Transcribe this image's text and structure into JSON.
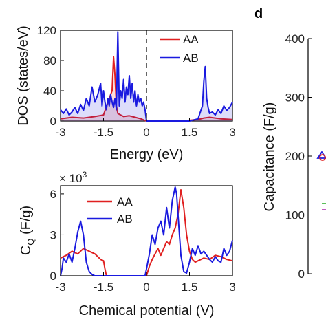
{
  "colors": {
    "AA": "#e02020",
    "AB": "#1a1adf",
    "axis": "#000000"
  },
  "chart_data": [
    {
      "type": "line",
      "panel": "dos",
      "xlabel": "Energy (eV)",
      "ylabel": "DOS (states/eV)",
      "xlim": [
        -3,
        3
      ],
      "ylim": [
        0,
        120
      ],
      "xticks": [
        "-3",
        "-1.5",
        "0",
        "1.5",
        "3"
      ],
      "yticks": [
        "0",
        "40",
        "80",
        "120"
      ],
      "fermi_line_x": 0,
      "legend": {
        "position": "top-right",
        "entries": [
          "AA",
          "AB"
        ]
      },
      "series": [
        {
          "name": "AA",
          "x": [
            -3.0,
            -2.6,
            -2.2,
            -1.8,
            -1.5,
            -1.3,
            -1.2,
            -1.15,
            -1.1,
            -1.05,
            -1.0,
            -0.9,
            -0.8,
            -0.6,
            -0.4,
            -0.2,
            0.0,
            0.6,
            1.2,
            1.8,
            2.0,
            2.2,
            2.6,
            3.0
          ],
          "y": [
            3,
            5,
            4,
            6,
            8,
            30,
            40,
            85,
            60,
            20,
            10,
            8,
            6,
            7,
            5,
            3,
            0,
            0,
            0,
            2,
            4,
            5,
            3,
            2
          ]
        },
        {
          "name": "AB",
          "x": [
            -3.0,
            -2.9,
            -2.8,
            -2.7,
            -2.6,
            -2.5,
            -2.4,
            -2.3,
            -2.2,
            -2.1,
            -2.0,
            -1.9,
            -1.8,
            -1.7,
            -1.6,
            -1.55,
            -1.5,
            -1.45,
            -1.4,
            -1.35,
            -1.3,
            -1.25,
            -1.2,
            -1.15,
            -1.1,
            -1.05,
            -1.0,
            -0.95,
            -0.9,
            -0.85,
            -0.8,
            -0.75,
            -0.7,
            -0.65,
            -0.6,
            -0.55,
            -0.5,
            -0.45,
            -0.4,
            -0.35,
            -0.3,
            -0.25,
            -0.2,
            -0.15,
            -0.1,
            -0.05,
            0.0,
            0.5,
            1.0,
            1.5,
            1.8,
            1.95,
            2.0,
            2.05,
            2.1,
            2.15,
            2.2,
            2.3,
            2.4,
            2.5,
            2.6,
            2.7,
            2.8,
            2.9,
            3.0
          ],
          "y": [
            15,
            10,
            16,
            8,
            12,
            18,
            10,
            22,
            14,
            30,
            20,
            45,
            25,
            35,
            50,
            20,
            40,
            25,
            15,
            30,
            20,
            35,
            25,
            18,
            30,
            15,
            118,
            20,
            40,
            30,
            55,
            25,
            45,
            35,
            60,
            30,
            50,
            25,
            40,
            20,
            35,
            25,
            30,
            20,
            25,
            15,
            0,
            0,
            0,
            0,
            3,
            20,
            52,
            72,
            30,
            18,
            10,
            12,
            8,
            15,
            10,
            20,
            14,
            18,
            25
          ]
        }
      ]
    },
    {
      "type": "line",
      "panel": "cq",
      "xlabel": "Chemical potential (V)",
      "ylabel": "C",
      "ylabel_sub": "Q",
      "ylabel_unit": " (F/g)",
      "scale_note": "× 10",
      "scale_exp": "3",
      "xlim": [
        -3,
        3
      ],
      "ylim": [
        0,
        6.6
      ],
      "xticks": [
        "-3",
        "-1.5",
        "0",
        "1.5",
        "3"
      ],
      "yticks": [
        "0",
        "3",
        "6"
      ],
      "legend": {
        "position": "top-center",
        "entries": [
          "AA",
          "AB"
        ]
      },
      "series": [
        {
          "name": "AA",
          "x": [
            -3.0,
            -2.8,
            -2.6,
            -2.4,
            -2.2,
            -2.0,
            -1.8,
            -1.7,
            -1.6,
            -1.5,
            -1.45,
            -1.4,
            -0.5,
            0.0,
            0.1,
            0.2,
            0.3,
            0.4,
            0.5,
            0.6,
            0.7,
            0.8,
            0.9,
            1.0,
            1.1,
            1.2,
            1.3,
            1.4,
            1.5,
            1.6,
            1.7,
            1.8,
            2.0,
            2.2,
            2.4,
            2.6,
            2.8,
            3.0
          ],
          "y": [
            1.3,
            1.5,
            1.8,
            1.6,
            2.0,
            1.8,
            1.6,
            1.4,
            1.2,
            1.1,
            0.5,
            0,
            0,
            0,
            0.7,
            1.2,
            1.6,
            2.0,
            1.5,
            2.0,
            2.5,
            2.3,
            3.0,
            3.5,
            4.5,
            6.3,
            5.0,
            3.0,
            1.8,
            1.2,
            1.0,
            1.1,
            1.3,
            1.2,
            1.5,
            1.4,
            1.2,
            1.1
          ]
        },
        {
          "name": "AB",
          "x": [
            -3.0,
            -2.95,
            -2.9,
            -2.8,
            -2.7,
            -2.6,
            -2.5,
            -2.4,
            -2.3,
            -2.2,
            -2.1,
            -2.0,
            -1.9,
            -1.8,
            -1.7,
            -1.6,
            -1.5,
            -0.2,
            -0.05,
            0.0,
            0.1,
            0.2,
            0.3,
            0.4,
            0.5,
            0.6,
            0.7,
            0.8,
            0.9,
            1.0,
            1.05,
            1.1,
            1.2,
            1.3,
            1.4,
            1.5,
            1.6,
            1.7,
            1.8,
            1.9,
            2.0,
            2.1,
            2.2,
            2.3,
            2.4,
            2.5,
            2.6,
            2.7,
            2.8,
            2.9,
            3.0
          ],
          "y": [
            0,
            0.5,
            1.3,
            1.0,
            1.6,
            1.0,
            2.0,
            3.2,
            4.0,
            3.0,
            1.0,
            0.3,
            0.1,
            0,
            0,
            0,
            0,
            0,
            0,
            0.5,
            1.6,
            3.0,
            2.3,
            3.5,
            4.0,
            3.0,
            5.0,
            3.5,
            5.5,
            6.5,
            6.0,
            4.5,
            1.5,
            0.3,
            0.2,
            1.0,
            2.0,
            1.5,
            2.2,
            1.6,
            1.8,
            1.5,
            1.2,
            1.0,
            1.4,
            1.1,
            1.0,
            2.0,
            1.5,
            1.8,
            2.6
          ]
        }
      ]
    },
    {
      "type": "scatter",
      "panel": "capacitance",
      "panel_label": "d",
      "ylabel": "Capacitance (F/g)",
      "ylim": [
        0,
        400
      ],
      "yticks": [
        "0",
        "100",
        "200",
        "300",
        "400"
      ]
    }
  ]
}
